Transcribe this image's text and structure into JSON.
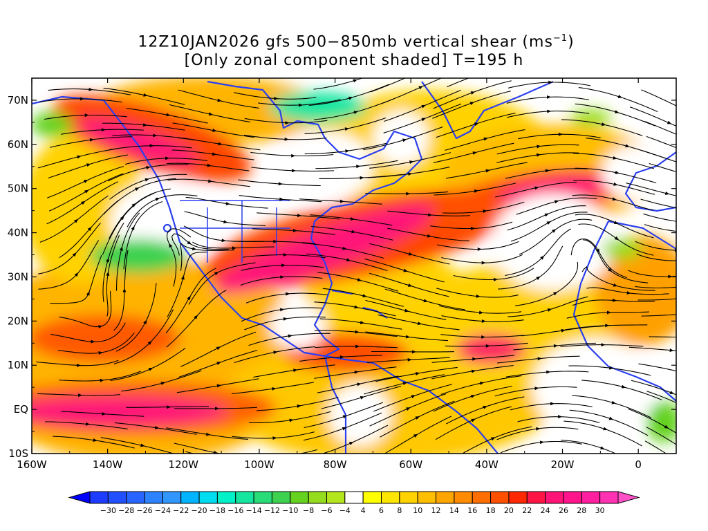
{
  "title": {
    "line1_prefix": "12Z10JAN2026 gfs 500−850mb vertical shear (ms",
    "line1_exp": "−1",
    "line1_suffix": ")",
    "line2": "[Only zonal component shaded] T=195 h"
  },
  "axes": {
    "lat_labels": [
      "70N",
      "60N",
      "50N",
      "40N",
      "30N",
      "20N",
      "10N",
      "EQ",
      "10S"
    ],
    "lat_values": [
      70,
      60,
      50,
      40,
      30,
      20,
      10,
      0,
      -10
    ],
    "lon_labels": [
      "160W",
      "140W",
      "120W",
      "100W",
      "80W",
      "60W",
      "40W",
      "20W",
      "0"
    ],
    "lon_values": [
      -160,
      -140,
      -120,
      -100,
      -80,
      -60,
      -40,
      -20,
      0
    ]
  },
  "map_extent": {
    "lon_min": -160,
    "lon_max": 10,
    "lat_min": -10,
    "lat_max": 75
  },
  "colorbar": {
    "labels": [
      "−30",
      "−28",
      "−26",
      "−24",
      "−22",
      "−20",
      "−18",
      "−16",
      "−14",
      "−12",
      "−10",
      "−8",
      "−6",
      "−4",
      "4",
      "6",
      "8",
      "10",
      "12",
      "14",
      "16",
      "18",
      "20",
      "22",
      "24",
      "26",
      "28",
      "30"
    ],
    "colors": [
      "#1e3cff",
      "#2350ff",
      "#2864ff",
      "#2d82ff",
      "#3296ff",
      "#00b4ff",
      "#00dcf0",
      "#00f0c8",
      "#14e6a0",
      "#28dc78",
      "#3cd250",
      "#64d21e",
      "#96dc1e",
      "#b4e61e",
      "#ffffff",
      "#ffff00",
      "#ffe600",
      "#ffd200",
      "#ffbe00",
      "#ffa500",
      "#ff8c00",
      "#ff6e00",
      "#ff5000",
      "#ff2800",
      "#ff1446",
      "#ff1478",
      "#ff148c",
      "#ff1ea0",
      "#ff32b4"
    ],
    "end_low": "#0000ff",
    "end_high": "#ff50c8"
  }
}
